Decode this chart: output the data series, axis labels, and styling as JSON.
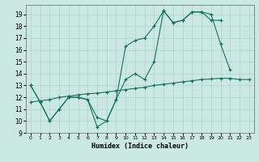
{
  "xlabel": "Humidex (Indice chaleur)",
  "bg_color": "#cce8e3",
  "grid_color": "#aad4cc",
  "line_color": "#1a7060",
  "xlim": [
    -0.5,
    23.5
  ],
  "ylim": [
    9,
    19.8
  ],
  "yticks": [
    9,
    10,
    11,
    12,
    13,
    14,
    15,
    16,
    17,
    18,
    19
  ],
  "xticks": [
    0,
    1,
    2,
    3,
    4,
    5,
    6,
    7,
    8,
    9,
    10,
    11,
    12,
    13,
    14,
    15,
    16,
    17,
    18,
    19,
    20,
    21,
    22,
    23
  ],
  "line1_x": [
    0,
    1,
    2,
    3,
    4,
    5,
    6,
    7,
    8,
    9,
    10,
    11,
    12,
    13,
    14,
    15,
    16,
    17,
    18,
    19,
    20,
    21,
    22,
    23
  ],
  "line1_y": [
    13.0,
    11.6,
    10.0,
    11.0,
    12.0,
    12.0,
    11.8,
    9.5,
    10.0,
    11.8,
    16.3,
    16.8,
    17.0,
    18.0,
    19.3,
    18.3,
    18.5,
    19.2,
    19.2,
    18.5,
    18.5,
    null,
    null,
    null
  ],
  "line2_x": [
    0,
    1,
    2,
    3,
    4,
    5,
    6,
    7,
    8,
    9,
    10,
    11,
    12,
    13,
    14,
    15,
    16,
    17,
    18,
    19,
    20,
    21,
    22,
    23
  ],
  "line2_y": [
    13.0,
    11.6,
    10.0,
    11.0,
    12.0,
    12.0,
    11.8,
    10.3,
    10.0,
    11.8,
    13.5,
    14.0,
    13.5,
    15.0,
    19.3,
    18.3,
    18.5,
    19.2,
    19.2,
    19.0,
    16.5,
    14.3,
    null,
    null
  ],
  "line3_x": [
    0,
    1,
    2,
    3,
    4,
    5,
    6,
    7,
    8,
    9,
    10,
    11,
    12,
    13,
    14,
    15,
    16,
    17,
    18,
    19,
    20,
    21,
    22,
    23
  ],
  "line3_y": [
    11.6,
    11.7,
    11.8,
    12.0,
    12.1,
    12.2,
    12.3,
    12.35,
    12.45,
    12.55,
    12.65,
    12.75,
    12.85,
    13.0,
    13.1,
    13.2,
    13.3,
    13.4,
    13.5,
    13.55,
    13.6,
    13.6,
    13.5,
    13.5
  ]
}
